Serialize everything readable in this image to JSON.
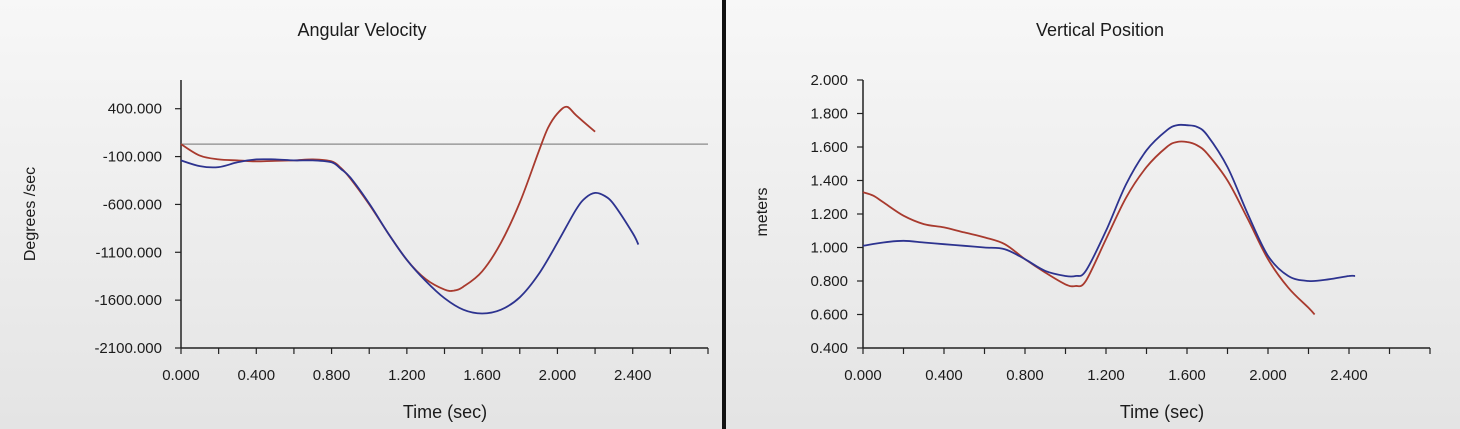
{
  "chart_data": [
    {
      "type": "line",
      "title": "Angular Velocity",
      "xlabel": "Time (sec)",
      "ylabel": "Degrees /sec",
      "xlim": [
        0,
        2.8
      ],
      "ylim": [
        -2100,
        700
      ],
      "x_ticks": [
        "0.000",
        "0.400",
        "0.800",
        "1.200",
        "1.600",
        "2.000",
        "2.400"
      ],
      "x_tick_values": [
        0,
        0.4,
        0.8,
        1.2,
        1.6,
        2.0,
        2.4
      ],
      "x_minor_step": 0.2,
      "y_ticks": [
        "400.000",
        "-100.000",
        "-600.000",
        "-1100.000",
        "-1600.000",
        "-2100.000"
      ],
      "y_tick_values": [
        400,
        -100,
        -600,
        -1100,
        -1600,
        -2100
      ],
      "reference_line": {
        "y": 30,
        "color": "#8a8a8a"
      },
      "grid": false,
      "series": [
        {
          "color": "#a83a2e",
          "x": [
            0,
            0.1,
            0.2,
            0.3,
            0.4,
            0.5,
            0.6,
            0.7,
            0.8,
            0.85,
            0.9,
            1.0,
            1.1,
            1.2,
            1.3,
            1.4,
            1.45,
            1.5,
            1.6,
            1.7,
            1.8,
            1.9,
            1.95,
            2.0,
            2.05,
            2.1,
            2.2
          ],
          "y": [
            30,
            -90,
            -130,
            -140,
            -150,
            -145,
            -140,
            -130,
            -150,
            -220,
            -330,
            -600,
            -900,
            -1180,
            -1380,
            -1490,
            -1500,
            -1460,
            -1300,
            -1000,
            -580,
            -50,
            200,
            350,
            420,
            330,
            160
          ]
        },
        {
          "color": "#2d338f",
          "x": [
            0,
            0.1,
            0.2,
            0.3,
            0.4,
            0.5,
            0.6,
            0.7,
            0.8,
            0.85,
            0.9,
            1.0,
            1.1,
            1.2,
            1.3,
            1.4,
            1.5,
            1.6,
            1.7,
            1.8,
            1.9,
            2.0,
            2.1,
            2.15,
            2.2,
            2.25,
            2.3,
            2.4,
            2.43
          ],
          "y": [
            -140,
            -200,
            -210,
            -160,
            -130,
            -130,
            -140,
            -140,
            -160,
            -230,
            -320,
            -590,
            -900,
            -1180,
            -1400,
            -1580,
            -1700,
            -1740,
            -1700,
            -1570,
            -1330,
            -1000,
            -650,
            -530,
            -480,
            -510,
            -600,
            -900,
            -1020
          ]
        }
      ]
    },
    {
      "type": "line",
      "title": "Vertical Position",
      "xlabel": "Time (sec)",
      "ylabel": "meters",
      "xlim": [
        0,
        2.8
      ],
      "ylim": [
        0.4,
        2.0
      ],
      "x_ticks": [
        "0.000",
        "0.400",
        "0.800",
        "1.200",
        "1.600",
        "2.000",
        "2.400"
      ],
      "x_tick_values": [
        0,
        0.4,
        0.8,
        1.2,
        1.6,
        2.0,
        2.4
      ],
      "x_minor_step": 0.2,
      "y_ticks": [
        "2.000",
        "1.800",
        "1.600",
        "1.400",
        "1.200",
        "1.000",
        "0.800",
        "0.600",
        "0.400"
      ],
      "y_tick_values": [
        2.0,
        1.8,
        1.6,
        1.4,
        1.2,
        1.0,
        0.8,
        0.6,
        0.4
      ],
      "grid": false,
      "series": [
        {
          "color": "#a83a2e",
          "x": [
            0,
            0.05,
            0.1,
            0.2,
            0.3,
            0.4,
            0.5,
            0.6,
            0.7,
            0.8,
            0.9,
            1.0,
            1.05,
            1.1,
            1.2,
            1.3,
            1.4,
            1.5,
            1.55,
            1.6,
            1.65,
            1.7,
            1.8,
            1.9,
            2.0,
            2.1,
            2.2,
            2.23
          ],
          "y": [
            1.33,
            1.31,
            1.27,
            1.19,
            1.14,
            1.12,
            1.09,
            1.06,
            1.02,
            0.93,
            0.85,
            0.78,
            0.77,
            0.8,
            1.05,
            1.3,
            1.48,
            1.6,
            1.63,
            1.63,
            1.61,
            1.56,
            1.4,
            1.17,
            0.93,
            0.76,
            0.64,
            0.6
          ]
        },
        {
          "color": "#2d338f",
          "x": [
            0,
            0.1,
            0.2,
            0.3,
            0.4,
            0.5,
            0.6,
            0.7,
            0.8,
            0.9,
            1.0,
            1.05,
            1.1,
            1.2,
            1.3,
            1.4,
            1.5,
            1.55,
            1.6,
            1.65,
            1.7,
            1.8,
            1.9,
            2.0,
            2.1,
            2.2,
            2.3,
            2.4,
            2.43
          ],
          "y": [
            1.01,
            1.03,
            1.04,
            1.03,
            1.02,
            1.01,
            1.0,
            0.99,
            0.93,
            0.86,
            0.83,
            0.83,
            0.86,
            1.1,
            1.38,
            1.58,
            1.7,
            1.73,
            1.73,
            1.72,
            1.67,
            1.48,
            1.2,
            0.95,
            0.83,
            0.8,
            0.81,
            0.83,
            0.83
          ]
        }
      ]
    }
  ]
}
